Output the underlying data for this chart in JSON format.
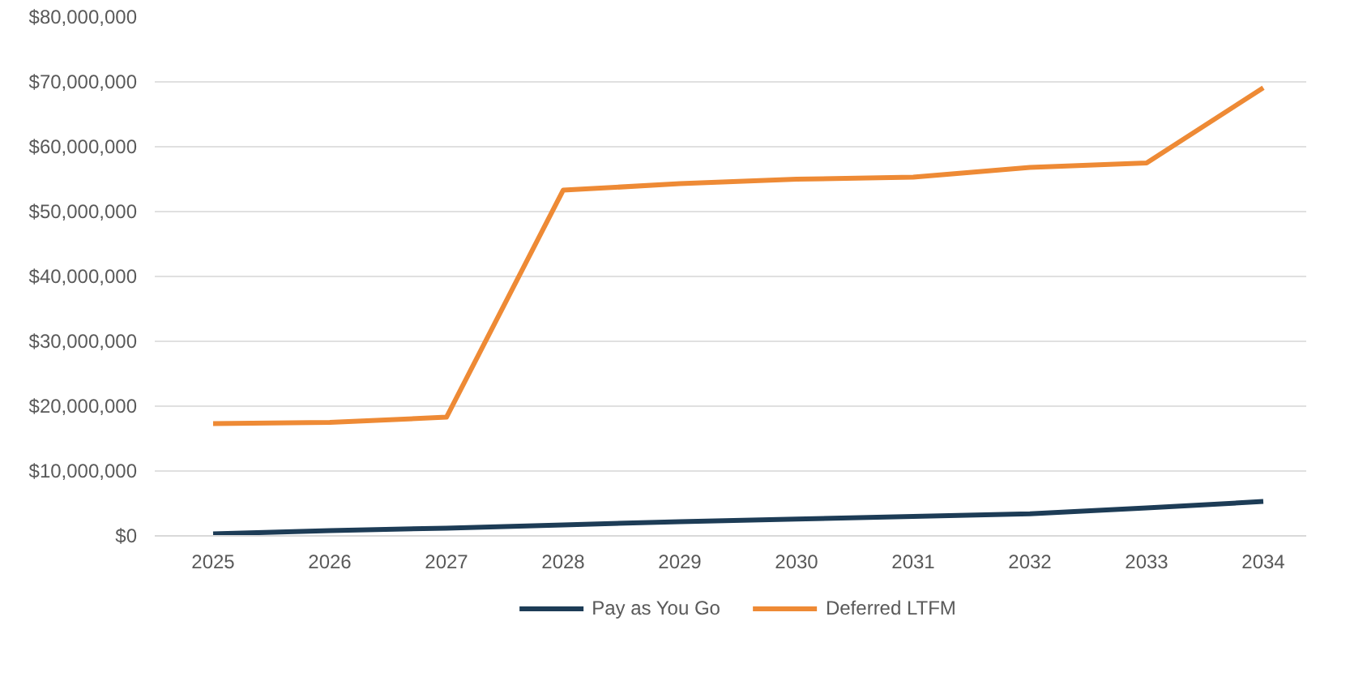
{
  "chart_data": {
    "type": "line",
    "categories": [
      "2025",
      "2026",
      "2027",
      "2028",
      "2029",
      "2030",
      "2031",
      "2032",
      "2033",
      "2034"
    ],
    "series": [
      {
        "name": "Pay as You Go",
        "color": "#1d3c56",
        "values": [
          300000,
          800000,
          1200000,
          1700000,
          2200000,
          2600000,
          3000000,
          3400000,
          4300000,
          5300000
        ]
      },
      {
        "name": "Deferred LTFM",
        "color": "#ee8a35",
        "values": [
          17300000,
          17500000,
          18300000,
          53300000,
          54300000,
          55000000,
          55300000,
          56800000,
          57500000,
          69100000
        ]
      }
    ],
    "ylim": [
      0,
      80000000
    ],
    "yticks": [
      {
        "value": 0,
        "label": "$0"
      },
      {
        "value": 10000000,
        "label": "$10,000,000"
      },
      {
        "value": 20000000,
        "label": "$20,000,000"
      },
      {
        "value": 30000000,
        "label": "$30,000,000"
      },
      {
        "value": 40000000,
        "label": "$40,000,000"
      },
      {
        "value": 50000000,
        "label": "$50,000,000"
      },
      {
        "value": 60000000,
        "label": "$60,000,000"
      },
      {
        "value": 70000000,
        "label": "$70,000,000"
      },
      {
        "value": 80000000,
        "label": "$80,000,000"
      }
    ],
    "grid": "y",
    "legend": "bottom",
    "line_style": "solid"
  }
}
